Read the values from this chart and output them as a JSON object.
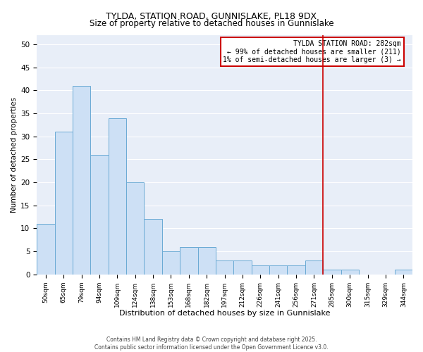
{
  "title": "TYLDA, STATION ROAD, GUNNISLAKE, PL18 9DX",
  "subtitle": "Size of property relative to detached houses in Gunnislake",
  "xlabel": "Distribution of detached houses by size in Gunnislake",
  "ylabel": "Number of detached properties",
  "categories": [
    "50sqm",
    "65sqm",
    "79sqm",
    "94sqm",
    "109sqm",
    "124sqm",
    "138sqm",
    "153sqm",
    "168sqm",
    "182sqm",
    "197sqm",
    "212sqm",
    "226sqm",
    "241sqm",
    "256sqm",
    "271sqm",
    "285sqm",
    "300sqm",
    "315sqm",
    "329sqm",
    "344sqm"
  ],
  "values": [
    11,
    31,
    41,
    26,
    34,
    20,
    12,
    5,
    6,
    6,
    3,
    3,
    2,
    2,
    2,
    3,
    1,
    1,
    0,
    0,
    1
  ],
  "bar_color": "#cde0f5",
  "bar_edge_color": "#6aaad4",
  "ylim": [
    0,
    52
  ],
  "yticks": [
    0,
    5,
    10,
    15,
    20,
    25,
    30,
    35,
    40,
    45,
    50
  ],
  "vline_index": 15.5,
  "vline_color": "#cc0000",
  "annotation_text": "TYLDA STATION ROAD: 282sqm\n← 99% of detached houses are smaller (211)\n1% of semi-detached houses are larger (3) →",
  "annotation_box_color": "#cc0000",
  "footer_line1": "Contains HM Land Registry data © Crown copyright and database right 2025.",
  "footer_line2": "Contains public sector information licensed under the Open Government Licence v3.0.",
  "fig_bg_color": "#ffffff",
  "plot_bg_color": "#e8eef8",
  "grid_color": "#ffffff",
  "title_fontsize": 9,
  "subtitle_fontsize": 8.5
}
